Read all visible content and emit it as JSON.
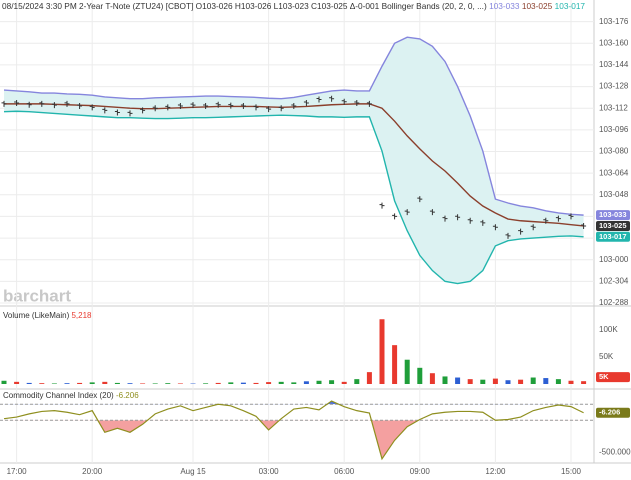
{
  "chart_data": [
    {
      "type": "price",
      "title": "08/15/2024 3:30 PM 2-Year T-Note (ZTU24) [CBOT] O103-026 H103-026 L103-023 C103-025 Δ-0-001",
      "indicator": "Bollinger Bands (20, 2, 0, ...)",
      "watermark": "barchart",
      "categories": [
        null,
        "17:00",
        null,
        null,
        null,
        null,
        null,
        "20:00",
        null,
        null,
        null,
        null,
        null,
        null,
        null,
        "Aug 15",
        null,
        null,
        null,
        null,
        null,
        "03:00",
        null,
        null,
        null,
        null,
        null,
        "06:00",
        null,
        null,
        null,
        null,
        null,
        "09:00",
        null,
        null,
        null,
        null,
        null,
        "12:00",
        null,
        null,
        null,
        null,
        null,
        "15:00",
        null
      ],
      "band_fill": "#dcf2f2",
      "grid": true,
      "series": [
        {
          "type": "line",
          "color": "#8585dd",
          "last_label": "103-033",
          "axis_box": true,
          "values": [
            103.392,
            103.39,
            103.388,
            103.385,
            103.385,
            103.383,
            103.382,
            103.38,
            103.376,
            103.374,
            103.372,
            103.372,
            103.374,
            103.375,
            103.376,
            103.377,
            103.378,
            103.378,
            103.377,
            103.376,
            103.375,
            103.373,
            103.372,
            103.375,
            103.38,
            103.385,
            103.39,
            103.392,
            103.39,
            103.39,
            103.447,
            103.5,
            103.514,
            103.51,
            103.493,
            103.458,
            103.4,
            103.332,
            103.251,
            103.14,
            103.131,
            103.124,
            103.12,
            103.113,
            103.108,
            103.105,
            103.103
          ]
        },
        {
          "type": "line",
          "color": "#8b3f2c",
          "last_label": "103-025",
          "values": [
            103.36,
            103.36,
            103.36,
            103.36,
            103.359,
            103.358,
            103.357,
            103.356,
            103.354,
            103.352,
            103.35,
            103.349,
            103.349,
            103.35,
            103.351,
            103.352,
            103.353,
            103.354,
            103.354,
            103.354,
            103.354,
            103.353,
            103.352,
            103.353,
            103.354,
            103.356,
            103.358,
            103.359,
            103.36,
            103.36,
            103.35,
            103.32,
            103.286,
            103.256,
            103.228,
            103.205,
            103.177,
            103.147,
            103.124,
            103.108,
            103.094,
            103.09,
            103.088,
            103.086,
            103.084,
            103.081,
            103.078
          ]
        },
        {
          "type": "line",
          "color": "#22b5ad",
          "last_label": "103-017",
          "axis_box": true,
          "values": [
            103.342,
            103.343,
            103.342,
            103.34,
            103.338,
            103.336,
            103.334,
            103.332,
            103.33,
            103.328,
            103.328,
            103.327,
            103.326,
            103.326,
            103.327,
            103.328,
            103.328,
            103.329,
            103.33,
            103.331,
            103.332,
            103.333,
            103.334,
            103.333,
            103.332,
            103.33,
            103.33,
            103.329,
            103.33,
            103.33,
            103.251,
            103.136,
            103.067,
            103.01,
            102.975,
            102.95,
            102.945,
            102.95,
            102.975,
            103.032,
            103.044,
            103.048,
            103.05,
            103.052,
            103.054,
            103.055,
            103.053
          ]
        },
        {
          "type": "ohlc",
          "color": "#333333",
          "last_label": "103-025",
          "axis_box": true,
          "values": [
            103.36,
            103.362,
            103.358,
            103.36,
            103.357,
            103.36,
            103.355,
            103.352,
            103.345,
            103.34,
            103.338,
            103.345,
            103.35,
            103.352,
            103.355,
            103.357,
            103.355,
            103.358,
            103.356,
            103.355,
            103.352,
            103.348,
            103.35,
            103.355,
            103.362,
            103.37,
            103.372,
            103.365,
            103.362,
            103.36,
            103.125,
            103.1,
            103.11,
            103.14,
            103.11,
            103.095,
            103.098,
            103.09,
            103.085,
            103.075,
            103.055,
            103.065,
            103.075,
            103.09,
            103.095,
            103.1,
            103.078
          ]
        }
      ],
      "ylim": [
        102.9,
        103.6
      ],
      "yticks": [
        {
          "value": 103.55,
          "label": "103-176"
        },
        {
          "value": 103.5,
          "label": "103-160"
        },
        {
          "value": 103.45,
          "label": "103-144"
        },
        {
          "value": 103.4,
          "label": "103-128"
        },
        {
          "value": 103.35,
          "label": "103-112"
        },
        {
          "value": 103.3,
          "label": "103-096"
        },
        {
          "value": 103.25,
          "label": "103-080"
        },
        {
          "value": 103.2,
          "label": "103-064"
        },
        {
          "value": 103.15,
          "label": "103-048"
        },
        {
          "value": 103.1,
          "label": "103-032"
        },
        {
          "value": 103.05,
          "label": "103-016"
        },
        {
          "value": 103.0,
          "label": "103-000"
        },
        {
          "value": 102.95,
          "label": "102-304"
        },
        {
          "value": 102.9,
          "label": "102-288"
        }
      ]
    },
    {
      "type": "bar",
      "title": "Volume (LikeMain)",
      "last_label": "5,218",
      "last_tick_label": "5K",
      "last_color": "#e8392e",
      "values": [
        6000,
        4000,
        2000,
        1500,
        1000,
        1500,
        2000,
        3000,
        4000,
        2000,
        1500,
        1000,
        1000,
        1500,
        1000,
        800,
        1200,
        2000,
        3000,
        2500,
        2000,
        3500,
        4000,
        3000,
        5000,
        6000,
        7000,
        4000,
        9000,
        22000,
        120000,
        72000,
        45000,
        30000,
        20000,
        14000,
        12000,
        9000,
        8000,
        10000,
        7000,
        8000,
        12000,
        11000,
        9000,
        6000,
        5218
      ],
      "colors": [
        "#1f9e3a",
        "#e8392e",
        "#2d5fd3",
        "#e8392e",
        "#1f9e3a",
        "#2d5fd3",
        "#e8392e",
        "#1f9e3a",
        "#e8392e",
        "#1f9e3a",
        "#2d5fd3",
        "#e8392e",
        "#1f9e3a",
        "#1f9e3a",
        "#e8392e",
        "#2d5fd3",
        "#1f9e3a",
        "#e8392e",
        "#1f9e3a",
        "#2d5fd3",
        "#e8392e",
        "#e8392e",
        "#1f9e3a",
        "#1f9e3a",
        "#2d5fd3",
        "#1f9e3a",
        "#1f9e3a",
        "#e8392e",
        "#1f9e3a",
        "#e8392e",
        "#e8392e",
        "#e8392e",
        "#1f9e3a",
        "#1f9e3a",
        "#e8392e",
        "#1f9e3a",
        "#2d5fd3",
        "#e8392e",
        "#1f9e3a",
        "#e8392e",
        "#2d5fd3",
        "#e8392e",
        "#1f9e3a",
        "#2d5fd3",
        "#1f9e3a",
        "#e8392e",
        "#e8392e"
      ],
      "ylim": [
        0,
        139000
      ],
      "yticks": [
        {
          "value": 100000,
          "label": "100K"
        },
        {
          "value": 50000,
          "label": "50K"
        }
      ]
    },
    {
      "type": "line",
      "title": "Commodity Channel Index (20)",
      "last_label": "-6.206",
      "color": "#8f8f1f",
      "box_color": "#7a7a1a",
      "fill_above": "#4a6fe3",
      "fill_below": "#f4a0a0",
      "levels": [
        100,
        -100
      ],
      "values": [
        -80,
        -60,
        -20,
        10,
        20,
        0,
        -30,
        20,
        -250,
        -200,
        -250,
        -150,
        -20,
        40,
        80,
        20,
        60,
        100,
        80,
        20,
        -50,
        -220,
        -80,
        40,
        60,
        30,
        140,
        70,
        20,
        -10,
        -580,
        -350,
        -180,
        -90,
        -20,
        0,
        10,
        10,
        0,
        -100,
        -90,
        -60,
        20,
        60,
        90,
        70,
        -6.206
      ],
      "ylim": [
        -620,
        240
      ],
      "yticks": [
        {
          "value": -500,
          "label": "-500.000"
        }
      ]
    }
  ]
}
